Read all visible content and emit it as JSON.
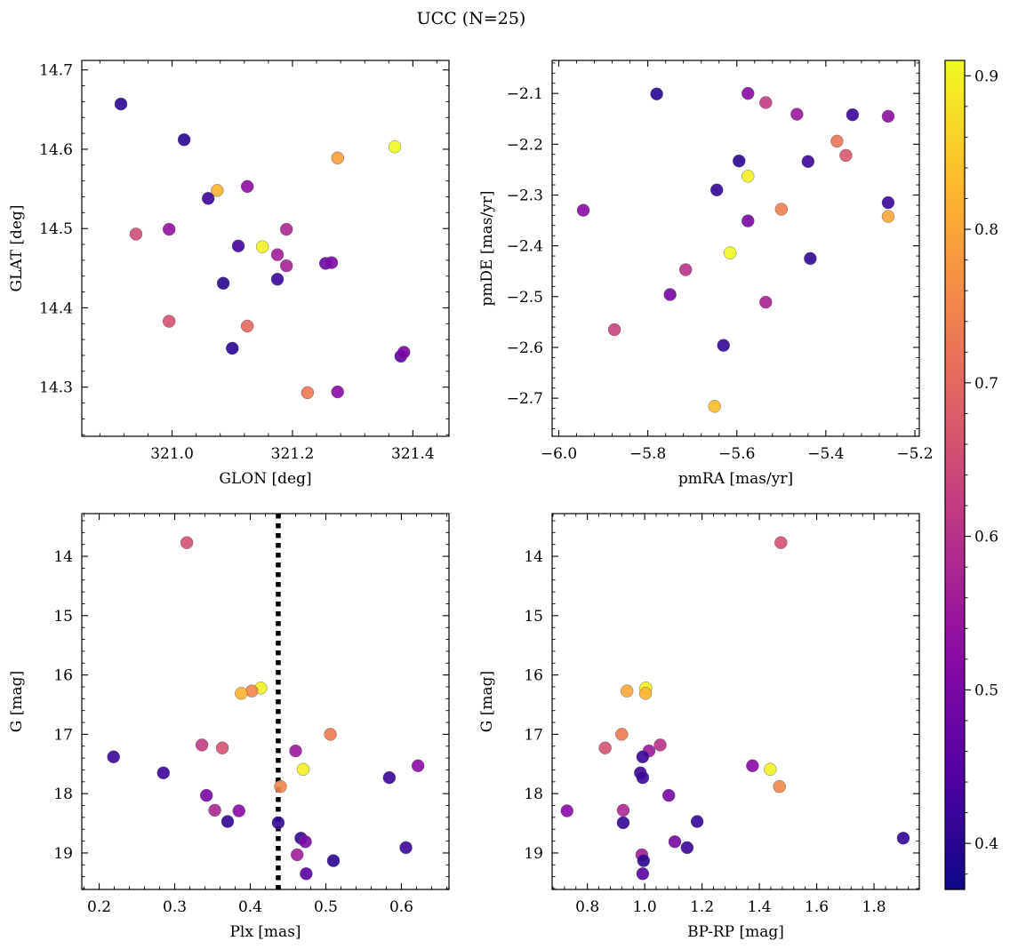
{
  "title": "UCC (N=25)",
  "colorbar": {
    "min": 0.37,
    "max": 0.91,
    "ticks": [
      0.4,
      0.5,
      0.6,
      0.7,
      0.8,
      0.9
    ],
    "tick_labels": [
      "0.4",
      "0.5",
      "0.6",
      "0.7",
      "0.8",
      "0.9"
    ],
    "colormap": "plasma"
  },
  "chart_data": [
    {
      "type": "scatter",
      "xlabel": "GLON [deg]",
      "ylabel": "GLAT [deg]",
      "xlim": [
        320.85,
        321.46
      ],
      "ylim": [
        14.238,
        14.712
      ],
      "xticks": [
        321.0,
        321.2,
        321.4
      ],
      "xtick_labels": [
        "321.0",
        "321.2",
        "321.4"
      ],
      "yticks": [
        14.3,
        14.4,
        14.5,
        14.6,
        14.7
      ],
      "ytick_labels": [
        "14.3",
        "14.4",
        "14.5",
        "14.6",
        "14.7"
      ],
      "points": [
        {
          "x": 320.915,
          "y": 14.657,
          "c": 0.4
        },
        {
          "x": 321.02,
          "y": 14.612,
          "c": 0.4
        },
        {
          "x": 321.075,
          "y": 14.548,
          "c": 0.82
        },
        {
          "x": 321.06,
          "y": 14.538,
          "c": 0.42
        },
        {
          "x": 321.125,
          "y": 14.553,
          "c": 0.53
        },
        {
          "x": 320.94,
          "y": 14.493,
          "c": 0.65
        },
        {
          "x": 320.995,
          "y": 14.499,
          "c": 0.54
        },
        {
          "x": 321.11,
          "y": 14.478,
          "c": 0.43
        },
        {
          "x": 321.15,
          "y": 14.477,
          "c": 0.9
        },
        {
          "x": 321.175,
          "y": 14.467,
          "c": 0.56
        },
        {
          "x": 321.19,
          "y": 14.499,
          "c": 0.58
        },
        {
          "x": 321.19,
          "y": 14.453,
          "c": 0.57
        },
        {
          "x": 321.255,
          "y": 14.456,
          "c": 0.48
        },
        {
          "x": 321.265,
          "y": 14.457,
          "c": 0.5
        },
        {
          "x": 321.085,
          "y": 14.431,
          "c": 0.4
        },
        {
          "x": 321.175,
          "y": 14.436,
          "c": 0.42
        },
        {
          "x": 320.995,
          "y": 14.383,
          "c": 0.66
        },
        {
          "x": 321.125,
          "y": 14.377,
          "c": 0.7
        },
        {
          "x": 321.1,
          "y": 14.349,
          "c": 0.4
        },
        {
          "x": 321.38,
          "y": 14.339,
          "c": 0.46
        },
        {
          "x": 321.385,
          "y": 14.344,
          "c": 0.5
        },
        {
          "x": 321.275,
          "y": 14.589,
          "c": 0.79
        },
        {
          "x": 321.37,
          "y": 14.603,
          "c": 0.91
        },
        {
          "x": 321.225,
          "y": 14.293,
          "c": 0.73
        },
        {
          "x": 321.275,
          "y": 14.294,
          "c": 0.52
        }
      ]
    },
    {
      "type": "scatter",
      "xlabel": "pmRA [mas/yr]",
      "ylabel": "pmDE [mas/yr]",
      "xlim": [
        -6.015,
        -5.19
      ],
      "ylim": [
        -2.775,
        -2.035
      ],
      "xticks": [
        -6.0,
        -5.8,
        -5.6,
        -5.4,
        -5.2
      ],
      "xtick_labels": [
        "−6.0",
        "−5.8",
        "−5.6",
        "−5.4",
        "−5.2"
      ],
      "yticks": [
        -2.7,
        -2.6,
        -2.5,
        -2.4,
        -2.3,
        -2.2,
        -2.1
      ],
      "ytick_labels": [
        "−2.7",
        "−2.6",
        "−2.5",
        "−2.4",
        "−2.3",
        "−2.2",
        "−2.1"
      ],
      "points": [
        {
          "x": -5.78,
          "y": -2.101,
          "c": 0.4
        },
        {
          "x": -5.575,
          "y": -2.1,
          "c": 0.52
        },
        {
          "x": -5.535,
          "y": -2.118,
          "c": 0.62
        },
        {
          "x": -5.465,
          "y": -2.141,
          "c": 0.55
        },
        {
          "x": -5.34,
          "y": -2.142,
          "c": 0.42
        },
        {
          "x": -5.26,
          "y": -2.145,
          "c": 0.53
        },
        {
          "x": -5.375,
          "y": -2.194,
          "c": 0.72
        },
        {
          "x": -5.355,
          "y": -2.222,
          "c": 0.67
        },
        {
          "x": -5.595,
          "y": -2.233,
          "c": 0.4
        },
        {
          "x": -5.44,
          "y": -2.234,
          "c": 0.42
        },
        {
          "x": -5.575,
          "y": -2.263,
          "c": 0.9
        },
        {
          "x": -5.645,
          "y": -2.29,
          "c": 0.41
        },
        {
          "x": -5.26,
          "y": -2.315,
          "c": 0.42
        },
        {
          "x": -5.945,
          "y": -2.33,
          "c": 0.52
        },
        {
          "x": -5.5,
          "y": -2.328,
          "c": 0.74
        },
        {
          "x": -5.26,
          "y": -2.342,
          "c": 0.8
        },
        {
          "x": -5.575,
          "y": -2.351,
          "c": 0.5
        },
        {
          "x": -5.615,
          "y": -2.414,
          "c": 0.91
        },
        {
          "x": -5.435,
          "y": -2.425,
          "c": 0.41
        },
        {
          "x": -5.715,
          "y": -2.447,
          "c": 0.6
        },
        {
          "x": -5.75,
          "y": -2.496,
          "c": 0.5
        },
        {
          "x": -5.535,
          "y": -2.511,
          "c": 0.57
        },
        {
          "x": -5.875,
          "y": -2.565,
          "c": 0.63
        },
        {
          "x": -5.63,
          "y": -2.596,
          "c": 0.41
        },
        {
          "x": -5.65,
          "y": -2.716,
          "c": 0.83
        }
      ]
    },
    {
      "type": "scatter",
      "xlabel": "Plx [mas]",
      "ylabel": "G [mag]",
      "xlim": [
        0.177,
        0.663
      ],
      "ylim": [
        19.615,
        13.28
      ],
      "y_inverted": true,
      "xticks": [
        0.2,
        0.3,
        0.4,
        0.5,
        0.6
      ],
      "xtick_labels": [
        "0.2",
        "0.3",
        "0.4",
        "0.5",
        "0.6"
      ],
      "yticks": [
        14,
        15,
        16,
        17,
        18,
        19
      ],
      "ytick_labels": [
        "14",
        "15",
        "16",
        "17",
        "18",
        "19"
      ],
      "vline": {
        "x": 0.437,
        "style": "dotted"
      },
      "points": [
        {
          "x": 0.316,
          "y": 13.77,
          "c": 0.66
        },
        {
          "x": 0.414,
          "y": 16.22,
          "c": 0.9
        },
        {
          "x": 0.402,
          "y": 16.27,
          "c": 0.75
        },
        {
          "x": 0.388,
          "y": 16.31,
          "c": 0.82
        },
        {
          "x": 0.336,
          "y": 17.18,
          "c": 0.62
        },
        {
          "x": 0.363,
          "y": 17.23,
          "c": 0.66
        },
        {
          "x": 0.506,
          "y": 17.0,
          "c": 0.73
        },
        {
          "x": 0.46,
          "y": 17.28,
          "c": 0.55
        },
        {
          "x": 0.219,
          "y": 17.38,
          "c": 0.42
        },
        {
          "x": 0.285,
          "y": 17.65,
          "c": 0.42
        },
        {
          "x": 0.47,
          "y": 17.59,
          "c": 0.9
        },
        {
          "x": 0.622,
          "y": 17.53,
          "c": 0.52
        },
        {
          "x": 0.584,
          "y": 17.73,
          "c": 0.42
        },
        {
          "x": 0.44,
          "y": 17.88,
          "c": 0.75
        },
        {
          "x": 0.342,
          "y": 18.03,
          "c": 0.5
        },
        {
          "x": 0.353,
          "y": 18.28,
          "c": 0.58
        },
        {
          "x": 0.385,
          "y": 18.29,
          "c": 0.52
        },
        {
          "x": 0.37,
          "y": 18.47,
          "c": 0.41
        },
        {
          "x": 0.437,
          "y": 18.49,
          "c": 0.41
        },
        {
          "x": 0.467,
          "y": 18.75,
          "c": 0.41
        },
        {
          "x": 0.473,
          "y": 18.81,
          "c": 0.5
        },
        {
          "x": 0.606,
          "y": 18.91,
          "c": 0.42
        },
        {
          "x": 0.462,
          "y": 19.03,
          "c": 0.56
        },
        {
          "x": 0.51,
          "y": 19.13,
          "c": 0.4
        },
        {
          "x": 0.474,
          "y": 19.35,
          "c": 0.45
        }
      ]
    },
    {
      "type": "scatter",
      "xlabel": "BP-RP [mag]",
      "ylabel": "G [mag]",
      "xlim": [
        0.677,
        1.958
      ],
      "ylim": [
        19.615,
        13.28
      ],
      "y_inverted": true,
      "xticks": [
        0.8,
        1.0,
        1.2,
        1.4,
        1.6,
        1.8
      ],
      "xtick_labels": [
        "0.8",
        "1.0",
        "1.2",
        "1.4",
        "1.6",
        "1.8"
      ],
      "yticks": [
        14,
        15,
        16,
        17,
        18,
        19
      ],
      "ytick_labels": [
        "14",
        "15",
        "16",
        "17",
        "18",
        "19"
      ],
      "points": [
        {
          "x": 1.475,
          "y": 13.77,
          "c": 0.66
        },
        {
          "x": 1.004,
          "y": 16.22,
          "c": 0.9
        },
        {
          "x": 0.938,
          "y": 16.27,
          "c": 0.8
        },
        {
          "x": 1.003,
          "y": 16.31,
          "c": 0.82
        },
        {
          "x": 0.92,
          "y": 17.0,
          "c": 0.73
        },
        {
          "x": 0.862,
          "y": 17.23,
          "c": 0.66
        },
        {
          "x": 1.054,
          "y": 17.18,
          "c": 0.6
        },
        {
          "x": 1.015,
          "y": 17.28,
          "c": 0.55
        },
        {
          "x": 0.993,
          "y": 17.38,
          "c": 0.42
        },
        {
          "x": 1.376,
          "y": 17.53,
          "c": 0.52
        },
        {
          "x": 1.438,
          "y": 17.59,
          "c": 0.9
        },
        {
          "x": 0.985,
          "y": 17.65,
          "c": 0.42
        },
        {
          "x": 0.993,
          "y": 17.73,
          "c": 0.42
        },
        {
          "x": 1.47,
          "y": 17.88,
          "c": 0.75
        },
        {
          "x": 1.084,
          "y": 18.03,
          "c": 0.5
        },
        {
          "x": 0.729,
          "y": 18.29,
          "c": 0.52
        },
        {
          "x": 0.925,
          "y": 18.28,
          "c": 0.58
        },
        {
          "x": 0.925,
          "y": 18.49,
          "c": 0.41
        },
        {
          "x": 1.183,
          "y": 18.47,
          "c": 0.41
        },
        {
          "x": 1.105,
          "y": 18.81,
          "c": 0.5
        },
        {
          "x": 1.148,
          "y": 18.91,
          "c": 0.42
        },
        {
          "x": 1.902,
          "y": 18.75,
          "c": 0.41
        },
        {
          "x": 0.99,
          "y": 19.03,
          "c": 0.56
        },
        {
          "x": 0.996,
          "y": 19.13,
          "c": 0.4
        },
        {
          "x": 0.993,
          "y": 19.35,
          "c": 0.45
        }
      ]
    }
  ]
}
